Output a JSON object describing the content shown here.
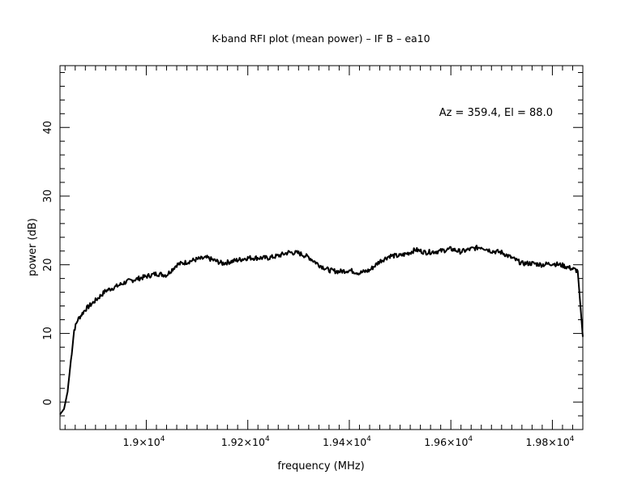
{
  "chart_data": {
    "type": "line",
    "title": "K-band RFI plot (mean power) – IF B – ea10",
    "xlabel": "frequency (MHz)",
    "ylabel": "power (dB)",
    "annotation": "Az = 359.4, El = 88.0",
    "xlim": [
      18830,
      19860
    ],
    "ylim": [
      -4,
      49
    ],
    "x_ticks": [
      {
        "value": 19000,
        "label_mant": "1.9×10",
        "label_exp": "4"
      },
      {
        "value": 19200,
        "label_mant": "1.92×10",
        "label_exp": "4"
      },
      {
        "value": 19400,
        "label_mant": "1.94×10",
        "label_exp": "4"
      },
      {
        "value": 19600,
        "label_mant": "1.96×10",
        "label_exp": "4"
      },
      {
        "value": 19800,
        "label_mant": "1.98×10",
        "label_exp": "4"
      }
    ],
    "y_ticks": [
      {
        "value": 0,
        "label": "0"
      },
      {
        "value": 10,
        "label": "10"
      },
      {
        "value": 20,
        "label": "20"
      },
      {
        "value": 30,
        "label": "30"
      },
      {
        "value": 40,
        "label": "40"
      }
    ],
    "grid": false,
    "line_color": "#000000",
    "series": [
      {
        "x": [
          18830,
          18838,
          18845,
          18850,
          18858,
          18865,
          18880,
          18900,
          18920,
          18940,
          18960,
          19000,
          19020,
          19040,
          19060,
          19080,
          19100,
          19120,
          19150,
          19175,
          19200,
          19240,
          19260,
          19280,
          19300,
          19320,
          19340,
          19360,
          19380,
          19400,
          19420,
          19440,
          19460,
          19480,
          19500,
          19520,
          19530,
          19550,
          19580,
          19600,
          19620,
          19640,
          19660,
          19680,
          19700,
          19720,
          19740,
          19760,
          19780,
          19800,
          19820,
          19840,
          19850,
          19860
        ],
        "y": [
          -1.8,
          -1.0,
          1.5,
          5.0,
          10.5,
          12.0,
          13.5,
          14.8,
          16.2,
          16.8,
          17.5,
          18.3,
          18.7,
          18.5,
          20.0,
          20.4,
          20.8,
          21.0,
          20.2,
          20.6,
          21.0,
          21.0,
          21.3,
          21.8,
          21.7,
          21.1,
          20.0,
          19.2,
          19.0,
          19.2,
          18.8,
          19.2,
          20.5,
          21.3,
          21.3,
          21.8,
          22.2,
          21.8,
          22.0,
          22.3,
          21.9,
          22.3,
          22.6,
          22.0,
          21.8,
          21.0,
          20.2,
          20.2,
          20.0,
          20.2,
          19.9,
          19.4,
          19.1,
          9.5
        ]
      }
    ]
  }
}
